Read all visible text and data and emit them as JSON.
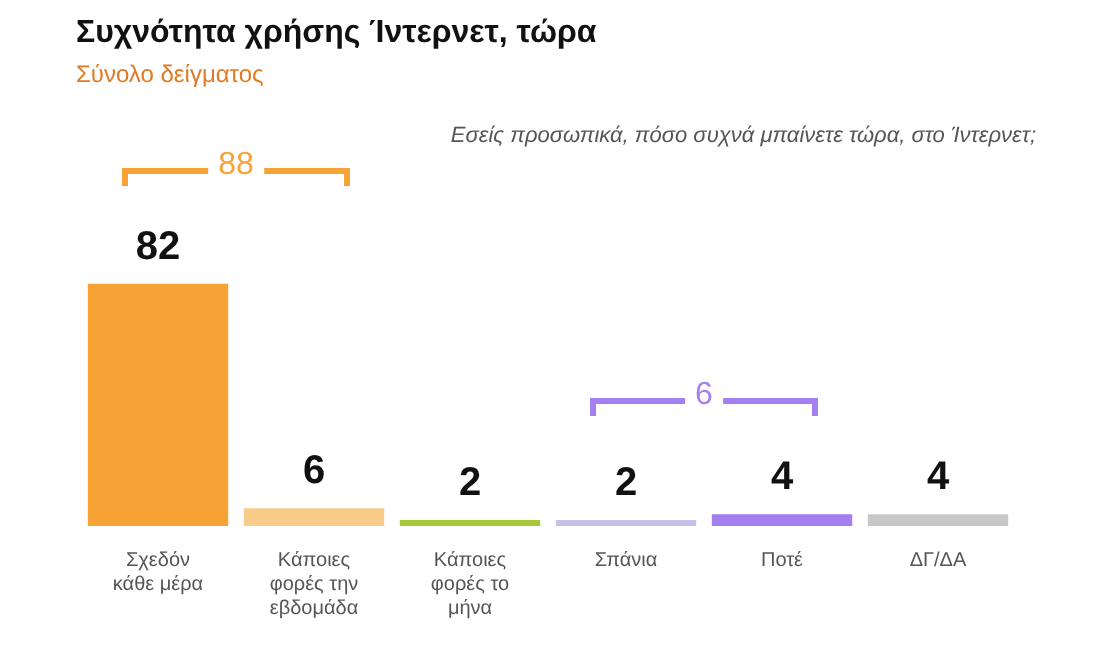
{
  "chart_data": {
    "type": "bar",
    "title": "Συχνότητα χρήσης Ίντερνετ, τώρα",
    "subtitle": "Σύνολο δείγματος",
    "categories": [
      "Σχεδόν κάθε μέρα",
      "Κάποιες φορές την εβδομάδα",
      "Κάποιες φορές το μήνα",
      "Σπάνια",
      "Ποτέ",
      "ΔΓ/ΔΑ"
    ],
    "values": [
      82,
      6,
      2,
      2,
      4,
      4
    ],
    "colors": [
      "#f7a234",
      "#f9cc8a",
      "#a8c83c",
      "#c8bfe8",
      "#a47ff0",
      "#c8c8c8"
    ],
    "data_labels": true,
    "grid": false,
    "legend": false,
    "annotations": [
      "Εσείς προσωπικά, πόσο συχνά μπαίνετε τώρα, στο Ίντερνετ;",
      "88",
      "6"
    ]
  }
}
